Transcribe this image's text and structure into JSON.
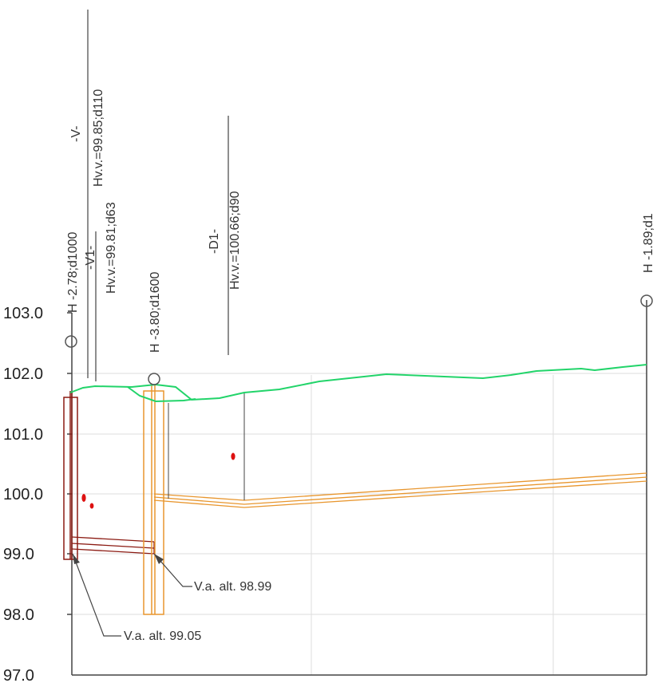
{
  "colors": {
    "terrain": "#22d46a",
    "pipe_orange": "#e8962e",
    "pipe_brown": "#8b1a12",
    "grid": "#dddddd",
    "axis": "#444444",
    "red_marker": "#dd1111",
    "text": "#333333"
  },
  "y_axis": {
    "min": 97.0,
    "max": 103.0,
    "ticks": [
      "103.0",
      "102.0",
      "101.0",
      "100.0",
      "99.0",
      "98.0",
      "97.0"
    ]
  },
  "wells": [
    {
      "label": "H -2.78;d1000"
    },
    {
      "label": "H -3.80;d1600"
    },
    {
      "label": "H -1.89;d1"
    }
  ],
  "connections": [
    {
      "name": "-V-",
      "hvv": "Hv.v.=99.85;d110"
    },
    {
      "name": "-V1-",
      "hvv": "Hv.v.=99.81;d63"
    },
    {
      "name": "-D1-",
      "hvv": "Hv.v.=100.66;d90"
    }
  ],
  "annotations": [
    {
      "text": "V.a. alt.  98.99"
    },
    {
      "text": "V.a. alt.  99.05"
    }
  ]
}
